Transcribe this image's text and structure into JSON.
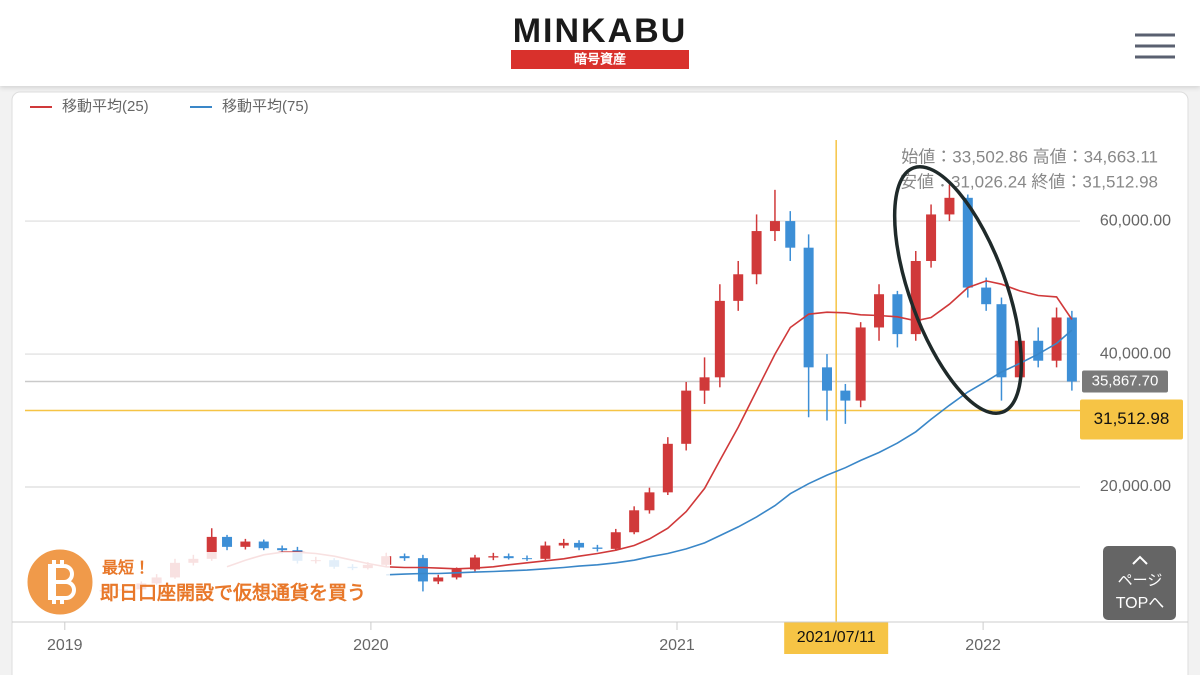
{
  "header": {
    "logo": "MINKABU",
    "subtitle": "暗号資産"
  },
  "chart_data": {
    "type": "candlestick",
    "x": [
      2018.9,
      2018.96,
      2019.02,
      2019.07,
      2019.13,
      2019.19,
      2019.25,
      2019.3,
      2019.36,
      2019.42,
      2019.48,
      2019.53,
      2019.59,
      2019.65,
      2019.71,
      2019.76,
      2019.82,
      2019.88,
      2019.94,
      2019.99,
      2020.05,
      2020.11,
      2020.17,
      2020.22,
      2020.28,
      2020.34,
      2020.4,
      2020.45,
      2020.51,
      2020.57,
      2020.63,
      2020.68,
      2020.74,
      2020.8,
      2020.86,
      2020.91,
      2020.97,
      2021.03,
      2021.09,
      2021.14,
      2021.2,
      2021.26,
      2021.32,
      2021.37,
      2021.43,
      2021.49,
      2021.55,
      2021.6,
      2021.66,
      2021.72,
      2021.78,
      2021.83,
      2021.89,
      2021.95,
      2022.01,
      2022.06,
      2022.12,
      2022.18,
      2022.24,
      2022.29
    ],
    "open": [
      4500,
      4200,
      4000,
      4100,
      4300,
      4500,
      4600,
      5500,
      6400,
      8600,
      9200,
      12500,
      11000,
      11800,
      10800,
      10500,
      8900,
      9000,
      8000,
      7800,
      8300,
      9600,
      9300,
      5800,
      6400,
      7600,
      9400,
      9600,
      9300,
      9200,
      11200,
      11600,
      10900,
      10700,
      13200,
      16500,
      19200,
      26500,
      34500,
      36500,
      48000,
      52000,
      58500,
      60000,
      56000,
      38000,
      34500,
      33000,
      44000,
      49000,
      43000,
      54000,
      61000,
      63500,
      50000,
      47500,
      36500,
      42000,
      39000,
      45500
    ],
    "high": [
      4700,
      4400,
      4300,
      4500,
      4700,
      4900,
      5800,
      6900,
      9200,
      9800,
      13800,
      12800,
      12200,
      12100,
      11200,
      11000,
      9500,
      9300,
      8400,
      8700,
      10100,
      10000,
      9800,
      6800,
      7900,
      9800,
      10100,
      10000,
      9700,
      11800,
      12200,
      12000,
      11300,
      13700,
      17100,
      19900,
      27500,
      35800,
      39500,
      50500,
      54000,
      61000,
      64700,
      61500,
      58000,
      40000,
      35500,
      44800,
      50500,
      49500,
      55500,
      62500,
      65500,
      64000,
      51500,
      48500,
      43000,
      44000,
      47000,
      46500
    ],
    "low": [
      4000,
      3800,
      3800,
      3900,
      4200,
      4400,
      4500,
      5300,
      6200,
      8200,
      8900,
      10500,
      10600,
      10500,
      10000,
      8500,
      8500,
      7700,
      7500,
      7600,
      8000,
      8900,
      4300,
      5400,
      6100,
      7300,
      9000,
      9100,
      8900,
      8900,
      10800,
      10500,
      10300,
      10400,
      12900,
      16000,
      18800,
      25500,
      32500,
      35000,
      46500,
      50500,
      57000,
      54000,
      30500,
      30000,
      29500,
      32000,
      42000,
      41000,
      42000,
      53000,
      60000,
      48500,
      46500,
      33000,
      35000,
      38000,
      38000,
      34500
    ],
    "close": [
      4200,
      4000,
      4100,
      4300,
      4500,
      4600,
      5500,
      6400,
      8600,
      9200,
      12500,
      11000,
      11800,
      10800,
      10500,
      8900,
      9000,
      8000,
      7800,
      8300,
      9600,
      9300,
      5800,
      6400,
      7600,
      9400,
      9600,
      9300,
      9200,
      11200,
      11600,
      10900,
      10700,
      13200,
      16500,
      19200,
      26500,
      34500,
      36500,
      48000,
      52000,
      58500,
      60000,
      56000,
      38000,
      34500,
      33000,
      44000,
      49000,
      43000,
      54000,
      61000,
      63500,
      50000,
      47500,
      36500,
      42000,
      39000,
      45500,
      35867.7
    ],
    "up_color": "#d0393a",
    "down_color": "#3d8fd6",
    "series": [
      {
        "name": "移動平均(25)",
        "color": "#d0393a",
        "values": [
          null,
          null,
          null,
          null,
          null,
          null,
          null,
          null,
          null,
          null,
          null,
          8000,
          9000,
          9800,
          10200,
          10200,
          10000,
          9600,
          9000,
          8500,
          8000,
          7900,
          7900,
          7800,
          7700,
          7800,
          8000,
          8300,
          8600,
          8900,
          9200,
          9600,
          10000,
          10500,
          11200,
          12200,
          13800,
          16300,
          19800,
          24000,
          29000,
          34500,
          40000,
          44000,
          46000,
          46300,
          46200,
          45900,
          45800,
          45600,
          45000,
          45500,
          47500,
          50000,
          51000,
          50500,
          49500,
          48800,
          48600,
          45200
        ]
      },
      {
        "name": "移動平均(75)",
        "color": "#3a87c8",
        "values": [
          null,
          null,
          null,
          null,
          null,
          null,
          null,
          null,
          null,
          null,
          null,
          null,
          null,
          null,
          null,
          null,
          null,
          null,
          null,
          null,
          6800,
          6900,
          7000,
          7000,
          7100,
          7200,
          7300,
          7400,
          7500,
          7700,
          7900,
          8100,
          8300,
          8600,
          9000,
          9500,
          10000,
          10700,
          11600,
          12700,
          14000,
          15500,
          17200,
          19000,
          20500,
          21800,
          22900,
          24000,
          25200,
          26600,
          28300,
          30200,
          32300,
          34300,
          35900,
          37300,
          38600,
          40000,
          41600,
          43600
        ]
      }
    ],
    "xlim": [
      2018.87,
      2022.31
    ],
    "xticks": [
      2019,
      2020,
      2021,
      2022
    ],
    "ylim": [
      0,
      73700
    ],
    "yticks": [
      {
        "value": 20000,
        "label": "20,000.00"
      },
      {
        "value": 40000,
        "label": "40,000.00"
      },
      {
        "value": 60000,
        "label": "60,000.00"
      }
    ],
    "grid": true,
    "crosshair": {
      "x": 2021.52,
      "x_label": "2021/07/11",
      "ohlc_text": [
        "始値：33,502.86 高値：34,663.11",
        "安値：31,026.24 終値：31,512.98"
      ]
    },
    "ref_lines": [
      {
        "value": 35867.7,
        "label": "35,867.70",
        "color": "#7a7a7a",
        "text_color": "#ffffff"
      },
      {
        "value": 31512.98,
        "label": "31,512.98",
        "color": "#f6c445",
        "text_color": "#111111"
      }
    ]
  },
  "ad": {
    "line1": "最短！",
    "line2": "即日口座開設で仮想通貨を買う"
  },
  "top_button": {
    "line1": "ページ",
    "line2": "TOPへ"
  }
}
